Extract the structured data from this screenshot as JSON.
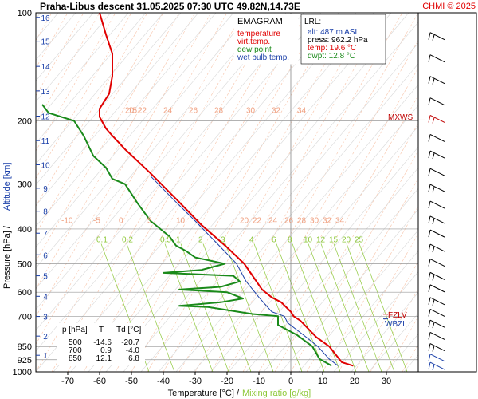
{
  "header": {
    "title": "Praha-Libus  descent  31.05.2025 07:30 UTC  49.82N,14.73E",
    "credit": "CHMI © 2025"
  },
  "legend": {
    "heading": "EMAGRAM",
    "items": [
      {
        "label": "temperature",
        "color": "#e00000"
      },
      {
        "label": "virt.temp.",
        "color": "#e00000"
      },
      {
        "label": "dew point",
        "color": "#1a8a1a"
      },
      {
        "label": "wet bulb temp.",
        "color": "#1a3fa8"
      }
    ]
  },
  "lrl": {
    "heading": "LRL:",
    "lines": [
      {
        "text": "alt: 487 m ASL",
        "color": "#1a3fa8"
      },
      {
        "text": "press: 962.2 hPa",
        "color": "#000000"
      },
      {
        "text": "temp: 19.6 °C",
        "color": "#e00000"
      },
      {
        "text": "dwpt: 12.8 °C",
        "color": "#1a8a1a"
      }
    ]
  },
  "table": {
    "headers": [
      "p [hPa]",
      "T",
      "Td [°C]"
    ],
    "rows": [
      [
        "500",
        "-14.6",
        "-20.7"
      ],
      [
        "700",
        "0.9",
        "-4.0"
      ],
      [
        "850",
        "12.1",
        "6.8"
      ]
    ]
  },
  "markers": {
    "mxws": "MXWS",
    "fzlv": "FZLV",
    "wbzl": "WBZL"
  },
  "axes": {
    "xlabel_part1": "Temperature [°C]  /",
    "xlabel_part2": "Mixing ratio [g/kg]",
    "ylabel_part1": "Pressure [hPa]  /",
    "ylabel_part2": "Altitude [km]"
  },
  "chart_data": {
    "type": "line",
    "title": "Praha-Libus  descent  31.05.2025 07:30 UTC  49.82N,14.73E",
    "xlabel": "Temperature [°C] / Mixing ratio [g/kg]",
    "ylabel": "Pressure [hPa] / Altitude [km]",
    "xlim": [
      -80,
      40
    ],
    "ylim": [
      1000,
      100
    ],
    "y_scale": "log",
    "x_ticks": [
      -70,
      -60,
      -50,
      -40,
      -30,
      -20,
      -10,
      0,
      10,
      20,
      30
    ],
    "y_ticks": [
      100,
      200,
      300,
      400,
      500,
      600,
      700,
      850,
      925,
      1000
    ],
    "altitude_ticks_km": [
      1,
      2,
      3,
      4,
      5,
      6,
      7,
      8,
      9,
      10,
      11,
      12,
      13,
      14,
      15,
      16
    ],
    "altitude_pressures_hPa": [
      899,
      795,
      701,
      616,
      540,
      472,
      411,
      357,
      308,
      265,
      227,
      194,
      165,
      141,
      120,
      103
    ],
    "isotherm_labels": [
      {
        "text": "15",
        "t": -51,
        "p": 190
      },
      {
        "text": "20",
        "t": -52,
        "p": 190
      },
      {
        "text": "22",
        "t": -48,
        "p": 190
      },
      {
        "text": "24",
        "t": -40,
        "p": 190
      },
      {
        "text": "26",
        "t": -32,
        "p": 190
      },
      {
        "text": "28",
        "t": -24,
        "p": 190
      },
      {
        "text": "30",
        "t": -14,
        "p": 190
      },
      {
        "text": "32",
        "t": -6,
        "p": 190
      },
      {
        "text": "34",
        "t": 2,
        "p": 190
      },
      {
        "text": "-10",
        "t": -72,
        "p": 385
      },
      {
        "text": "-5",
        "t": -62,
        "p": 385
      },
      {
        "text": "0",
        "t": -54,
        "p": 385
      },
      {
        "text": "5",
        "t": -45,
        "p": 385
      },
      {
        "text": "10",
        "t": -36,
        "p": 385
      },
      {
        "text": "20",
        "t": -16,
        "p": 385
      },
      {
        "text": "22",
        "t": -12,
        "p": 385
      },
      {
        "text": "24",
        "t": -7,
        "p": 385
      },
      {
        "text": "26",
        "t": -2,
        "p": 385
      },
      {
        "text": "28",
        "t": 2,
        "p": 385
      },
      {
        "text": "30",
        "t": 6,
        "p": 385
      },
      {
        "text": "32",
        "t": 10,
        "p": 385
      },
      {
        "text": "34",
        "t": 14,
        "p": 385
      }
    ],
    "mixing_ratio_labels": [
      {
        "text": "0.1",
        "t": -61,
        "p": 435
      },
      {
        "text": "0.2",
        "t": -53,
        "p": 435
      },
      {
        "text": "0.5",
        "t": -41,
        "p": 435
      },
      {
        "text": "1",
        "t": -36,
        "p": 435
      },
      {
        "text": "2",
        "t": -29,
        "p": 435
      },
      {
        "text": "3",
        "t": -22,
        "p": 435
      },
      {
        "text": "4",
        "t": -13,
        "p": 435
      },
      {
        "text": "6",
        "t": -6,
        "p": 435
      },
      {
        "text": "8",
        "t": -1,
        "p": 435
      },
      {
        "text": "10",
        "t": 4,
        "p": 435
      },
      {
        "text": "12",
        "t": 8,
        "p": 435
      },
      {
        "text": "15",
        "t": 12,
        "p": 435
      },
      {
        "text": "20",
        "t": 16,
        "p": 435
      },
      {
        "text": "25",
        "t": 20,
        "p": 435
      }
    ],
    "series": [
      {
        "name": "temperature",
        "color": "#e00000",
        "points": [
          [
            19.6,
            962
          ],
          [
            16,
            940
          ],
          [
            12.1,
            850
          ],
          [
            8,
            800
          ],
          [
            3,
            720
          ],
          [
            0.9,
            700
          ],
          [
            0,
            680
          ],
          [
            -3,
            640
          ],
          [
            -6,
            620
          ],
          [
            -9,
            590
          ],
          [
            -14.6,
            500
          ],
          [
            -20,
            450
          ],
          [
            -28,
            390
          ],
          [
            -36,
            330
          ],
          [
            -44,
            280
          ],
          [
            -52,
            240
          ],
          [
            -56,
            220
          ],
          [
            -58,
            210
          ],
          [
            -60,
            195
          ],
          [
            -60,
            185
          ],
          [
            -57,
            168
          ],
          [
            -56,
            150
          ],
          [
            -56,
            130
          ],
          [
            -58,
            115
          ],
          [
            -60,
            100
          ]
        ]
      },
      {
        "name": "dew point",
        "color": "#1a8a1a",
        "points": [
          [
            12.8,
            962
          ],
          [
            9,
            920
          ],
          [
            6.8,
            850
          ],
          [
            2,
            790
          ],
          [
            -4,
            740
          ],
          [
            -4.0,
            700
          ],
          [
            -12,
            690
          ],
          [
            -26,
            660
          ],
          [
            -35,
            655
          ],
          [
            -22,
            640
          ],
          [
            -15,
            625
          ],
          [
            -20,
            600
          ],
          [
            -35,
            590
          ],
          [
            -22,
            580
          ],
          [
            -16,
            560
          ],
          [
            -18,
            540
          ],
          [
            -40,
            530
          ],
          [
            -28,
            520
          ],
          [
            -20.7,
            500
          ],
          [
            -30,
            480
          ],
          [
            -33,
            460
          ],
          [
            -36,
            445
          ],
          [
            -38,
            420
          ],
          [
            -44,
            380
          ],
          [
            -48,
            340
          ],
          [
            -52,
            300
          ],
          [
            -56,
            290
          ],
          [
            -58,
            270
          ],
          [
            -62,
            250
          ],
          [
            -65,
            220
          ],
          [
            -68,
            200
          ],
          [
            -76,
            190
          ],
          [
            -78,
            180
          ]
        ]
      },
      {
        "name": "wet bulb temp.",
        "color": "#1a3fa8",
        "points": [
          [
            14.8,
            962
          ],
          [
            12,
            920
          ],
          [
            8.5,
            850
          ],
          [
            4,
            790
          ],
          [
            -1,
            730
          ],
          [
            -2,
            700
          ],
          [
            -6,
            680
          ],
          [
            -10,
            620
          ],
          [
            -14,
            560
          ],
          [
            -17,
            500
          ],
          [
            -23,
            440
          ],
          [
            -30,
            380
          ],
          [
            -37,
            330
          ],
          [
            -44,
            285
          ]
        ]
      }
    ]
  }
}
